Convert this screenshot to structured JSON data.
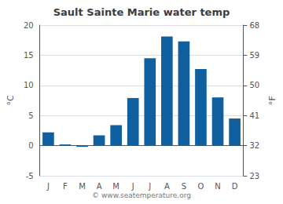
{
  "chart_data": {
    "type": "bar",
    "title": "Sault Sainte Marie water temp",
    "categories": [
      "J",
      "F",
      "M",
      "A",
      "M",
      "J",
      "J",
      "A",
      "S",
      "O",
      "N",
      "D"
    ],
    "values": [
      2.2,
      0.2,
      -0.2,
      1.7,
      3.4,
      7.9,
      14.5,
      18.1,
      17.3,
      12.7,
      8.0,
      4.5
    ],
    "color": "#1060a0",
    "ylabel": "°C",
    "y2label": "°F",
    "ylim": [
      -5,
      20
    ],
    "yticks": [
      -5,
      0,
      5,
      10,
      15,
      20
    ],
    "y2lim": [
      23,
      68
    ],
    "y2ticks": [
      23,
      32,
      41,
      50,
      59,
      68
    ],
    "grid": true,
    "annotations": [
      "© www.seatemperature.org"
    ]
  }
}
